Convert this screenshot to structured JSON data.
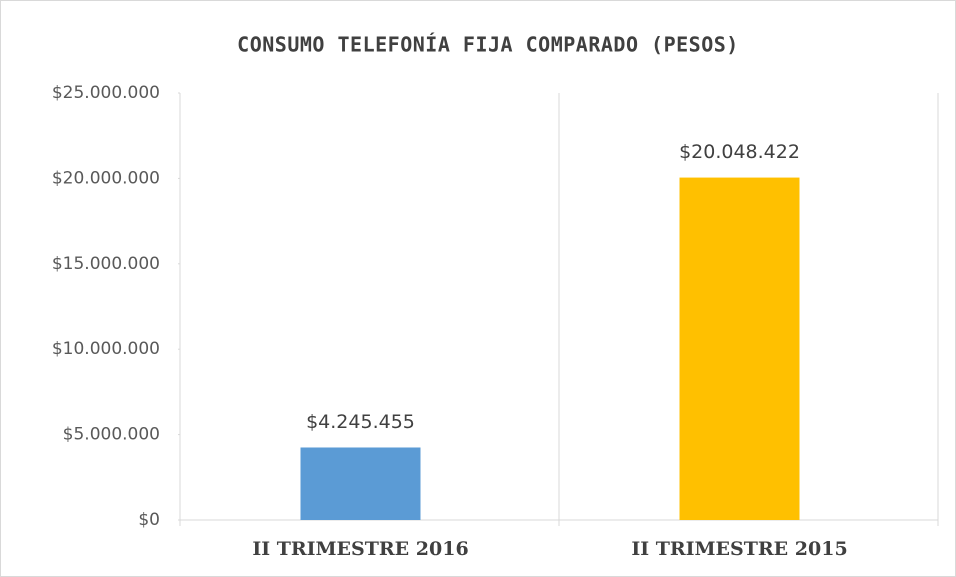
{
  "chart_data": {
    "type": "bar",
    "title": "CONSUMO TELEFONÍA FIJA COMPARADO (PESOS)",
    "categories": [
      "II TRIMESTRE 2016",
      "II TRIMESTRE 2015"
    ],
    "values": [
      4245455,
      20048422
    ],
    "value_labels": [
      "$4.245.455",
      "$20.048.422"
    ],
    "colors": [
      "#5b9bd5",
      "#ffc000"
    ],
    "ylim": [
      0,
      25000000
    ],
    "yticks": [
      {
        "value": 0,
        "label": "$0"
      },
      {
        "value": 5000000,
        "label": "$5.000.000"
      },
      {
        "value": 10000000,
        "label": "$10.000.000"
      },
      {
        "value": 15000000,
        "label": "$15.000.000"
      },
      {
        "value": 20000000,
        "label": "$20.000.000"
      },
      {
        "value": 25000000,
        "label": "$25.000.000"
      }
    ]
  }
}
